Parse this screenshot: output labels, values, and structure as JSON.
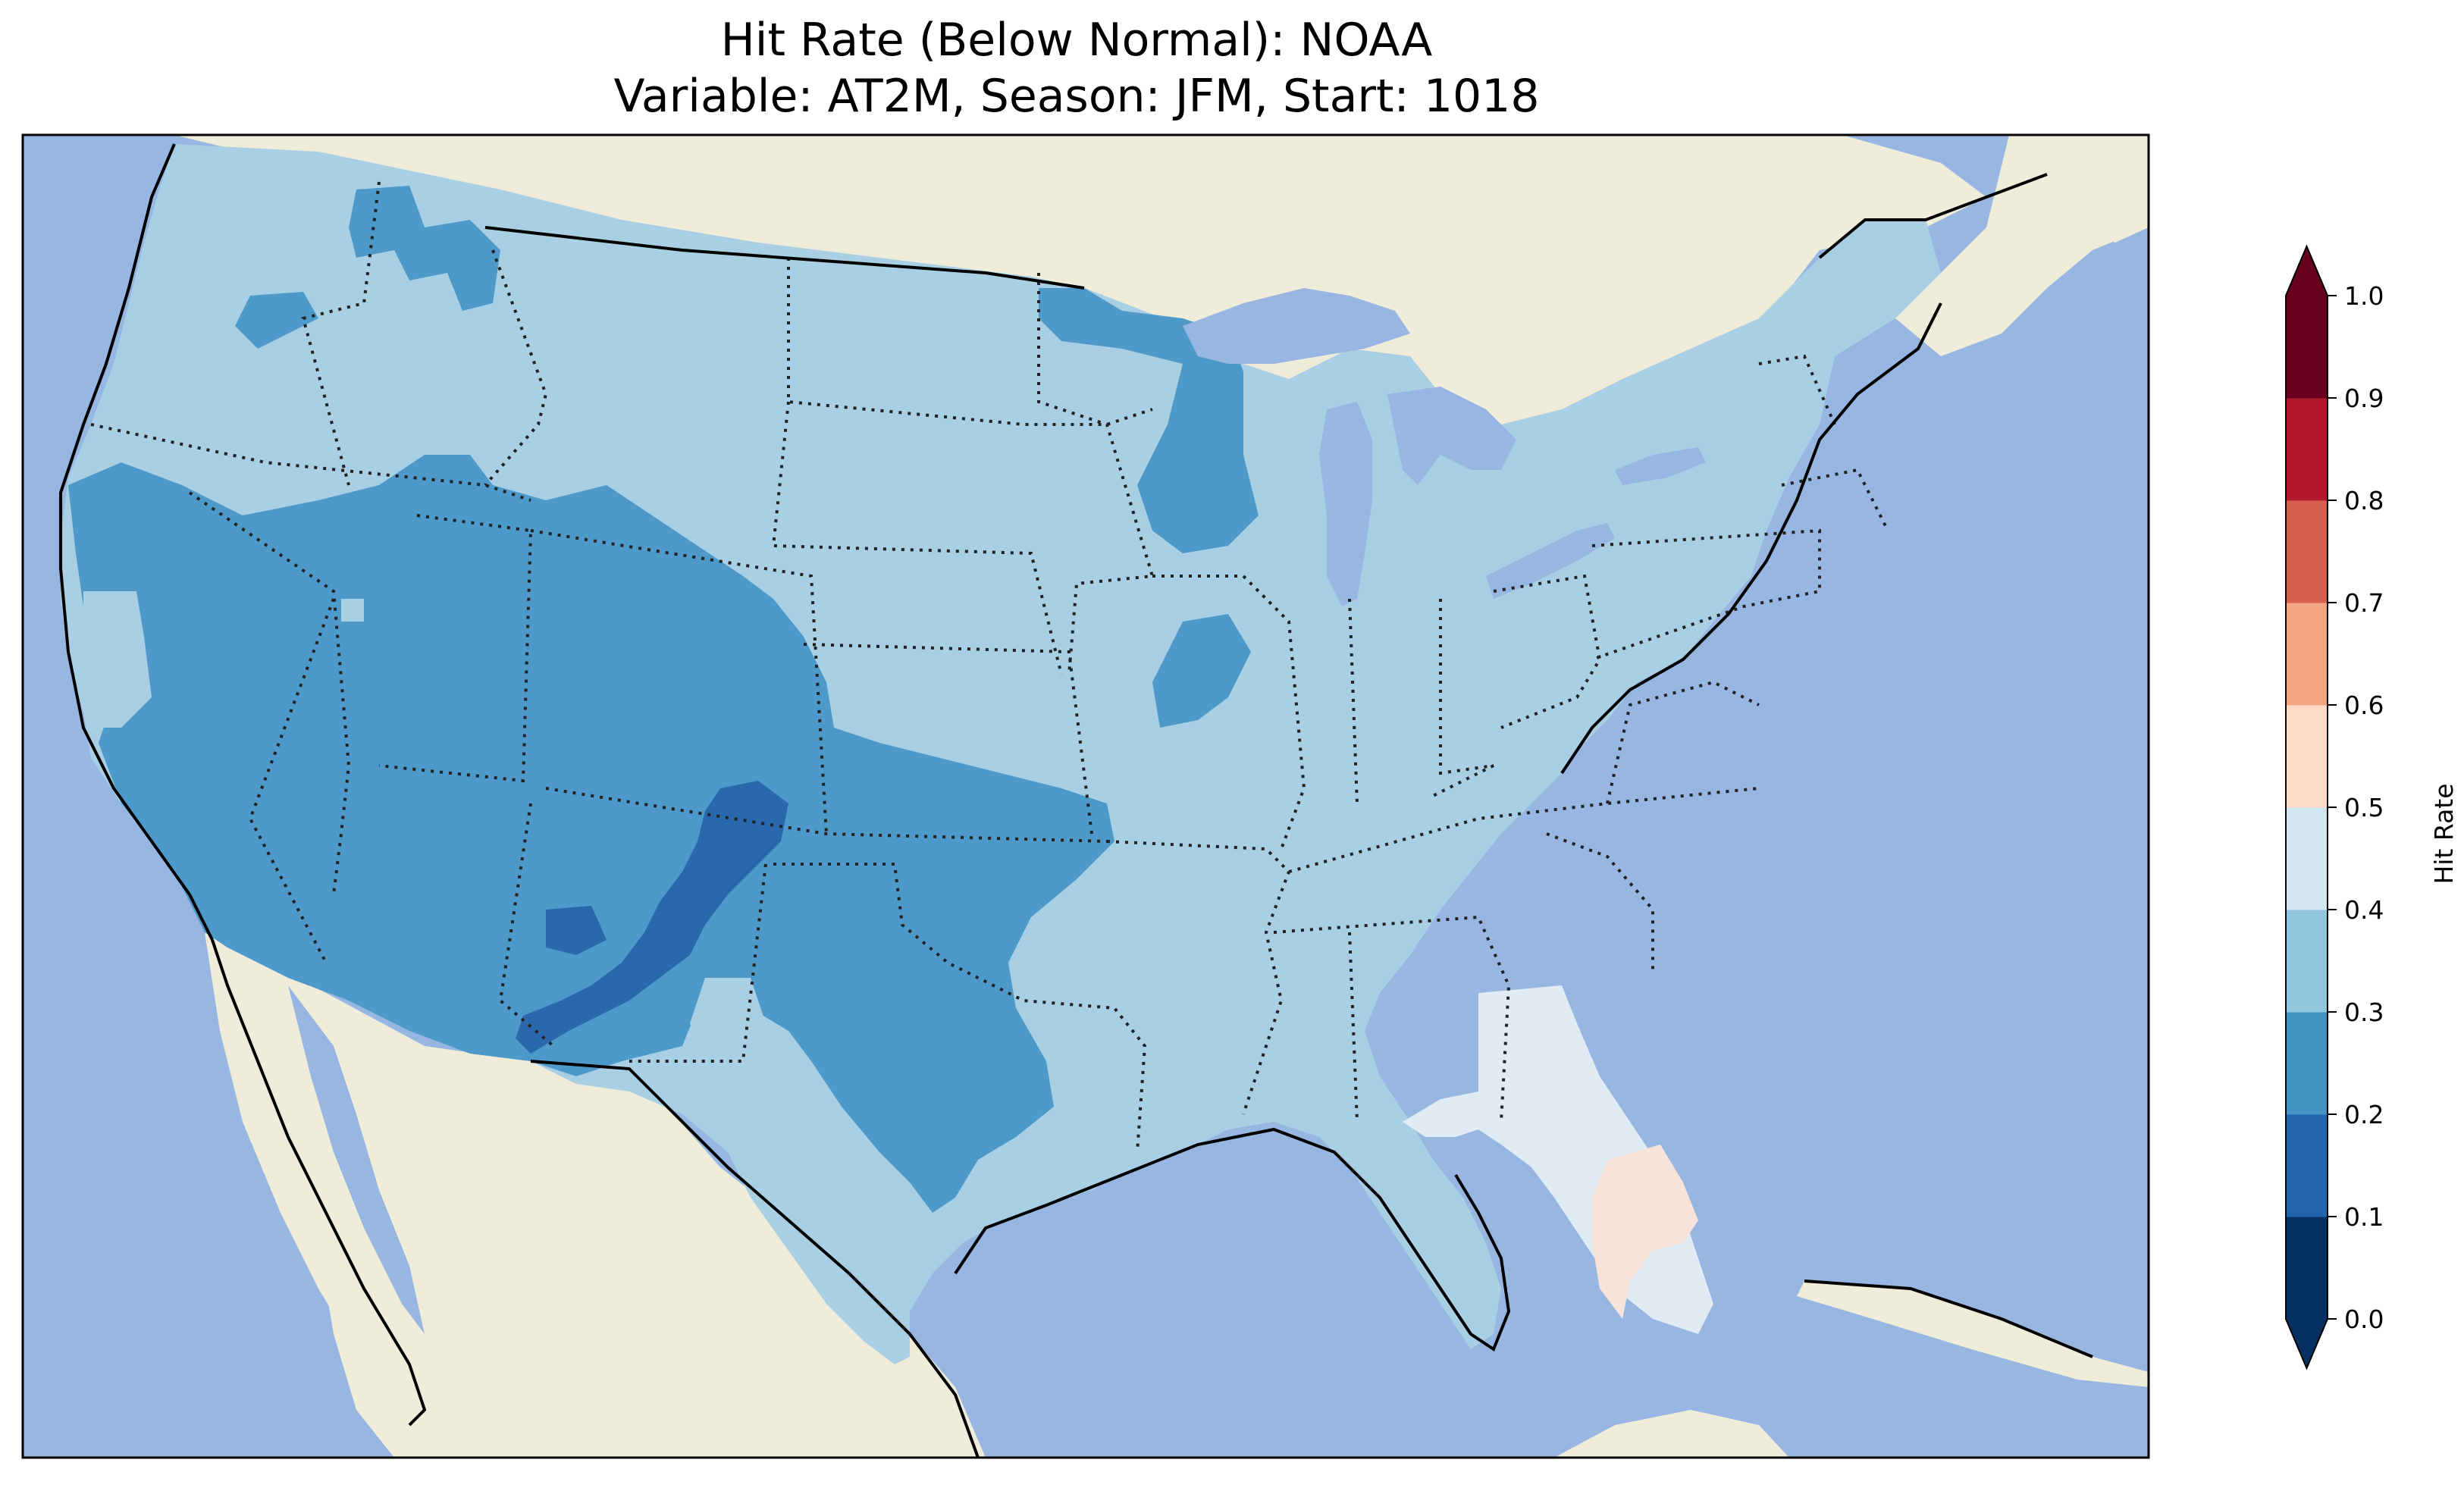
{
  "title": {
    "line1": "Hit Rate (Below Normal): NOAA",
    "line2": "Variable: AT2M, Season: JFM, Start: 1018"
  },
  "colorbar": {
    "label": "Hit Rate",
    "ticks": [
      "0.0",
      "0.1",
      "0.2",
      "0.3",
      "0.4",
      "0.5",
      "0.6",
      "0.7",
      "0.8",
      "0.9",
      "1.0"
    ],
    "colors": [
      "#053061",
      "#2166ac",
      "#4393c3",
      "#92c5de",
      "#d1e5f0",
      "#fddbc7",
      "#f4a582",
      "#d6604d",
      "#b2182b",
      "#67001f"
    ],
    "extend": "both"
  },
  "map": {
    "colors": {
      "ocean": "#97b6e1",
      "land": "#efedda",
      "hit_0.2_0.3": "#4d99c9",
      "hit_0.3_0.4": "#a8cfe3",
      "hit_0.1_0.2": "#2a68ae",
      "hit_0.4_0.5": "#e0ebf3",
      "hit_0.5_0.6": "#f7e3d9"
    },
    "dominant_range": "0.3–0.4",
    "regions": [
      {
        "name": "Contiguous U.S. background",
        "range": "0.3–0.4"
      },
      {
        "name": "Southwest / Four Corners / California",
        "range": "0.2–0.3"
      },
      {
        "name": "Central New Mexico band",
        "range": "0.1–0.2"
      },
      {
        "name": "Wisconsin / Upper Midwest",
        "range": "0.2–0.3"
      },
      {
        "name": "Southern Plains / Texas",
        "range": "0.2–0.3"
      },
      {
        "name": "Georgia / North Florida",
        "range": "0.4–0.5"
      },
      {
        "name": "Central Florida",
        "range": "0.5–0.6"
      }
    ]
  }
}
